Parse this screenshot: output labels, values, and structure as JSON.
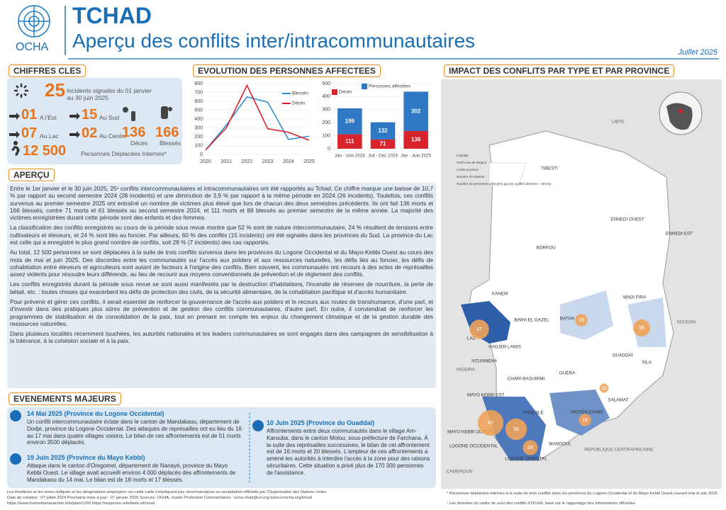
{
  "header": {
    "org": "OCHA",
    "country": "TCHAD",
    "title": "Aperçu des conflits inter/intracommunautaires",
    "date": "Juillet 2025"
  },
  "key_figures": {
    "title": "CHIFFRES CLES",
    "incidents": {
      "value": "25",
      "label": "Incidents signalés du 01 janvier au 30 juin 2025"
    },
    "regions": [
      {
        "value": "01",
        "label": "A l'Est"
      },
      {
        "value": "15",
        "label": "Au Sud"
      },
      {
        "value": "07",
        "label": "Au Lac"
      },
      {
        "value": "02",
        "label": "Au Centre"
      }
    ],
    "deaths": {
      "value": "136",
      "label": "Décès"
    },
    "injured": {
      "value": "166",
      "label": "Blessés"
    },
    "displaced": {
      "value": "12 500",
      "label": "Personnes Déplacées Internes*"
    }
  },
  "evolution_title": "EVOLUTION DES PERSONNES AFFECTEES",
  "chart_data": [
    {
      "type": "line",
      "categories": [
        "2020",
        "2021",
        "2022",
        "2023",
        "2024",
        "2025"
      ],
      "series": [
        {
          "name": "Blessés",
          "color": "#2f8fd0",
          "values": [
            50,
            330,
            650,
            590,
            170,
            205
          ]
        },
        {
          "name": "Décès",
          "color": "#d9232d",
          "values": [
            50,
            300,
            780,
            290,
            250,
            160
          ]
        }
      ],
      "ylim": [
        0,
        800
      ],
      "yticks": [
        0,
        100,
        200,
        300,
        400,
        500,
        600,
        700,
        800
      ],
      "grid": true
    },
    {
      "type": "bar",
      "categories": [
        "Jan - Juin 2024",
        "Juil - Déc 2024",
        "Jan - Juin 2025"
      ],
      "series": [
        {
          "name": "Décès",
          "color": "#d9232d",
          "values": [
            111,
            71,
            136
          ]
        },
        {
          "name": "Personnes affectées",
          "color": "#2f78c4",
          "values": [
            199,
            132,
            302
          ]
        }
      ],
      "ylim": [
        0,
        500
      ],
      "yticks": [
        0,
        100,
        200,
        300,
        400,
        500
      ],
      "grid": true
    }
  ],
  "overview": {
    "title": "APERÇU",
    "paragraphs": [
      "Entre le 1er janvier et le 30 juin 2025, 25¹ conflits intercommunautaires et intracommunautaires ont été rapportés au Tchad. Ce chiffre marque une baisse de 10,7 % par rapport au second semestre 2024 (28 incidents) et une diminution de 3,9 % par rapport à la même période en 2024 (26 incidents). Toutefois, ces conflits survenus au premier semestre 2025 ont entraîné un nombre de victimes plus élevé que lors de chacun des deux semestres précédents. Ils ont fait 136 morts et 166 blessés, contre 71 morts et 61 blessés au second semestre 2024, et 111 morts et 88 blessés au premier semestre de la même année. La majorité des victimes enregistrées durant cette période sont des enfants et des femmes.",
      "La classification des conflits enregistrés au cours de la période sous revue montre que 52 % sont de nature intercommunautaire, 24 % résultent de tensions entre cultivateurs et éleveurs, et 24 % sont liés au foncier. Par ailleurs, 60 % des conflits (15 incidents) ont été signalés dans les provinces du Sud. La province du Lac est celle qui a enregistré le plus grand nombre de conflits, soit 28 % (7 incidents) des cas rapportés.",
      "Au total, 12 500 personnes se sont déplacées à la suite de trois conflits survenus dans les provinces du Logone Occidental et du Mayo-Kebbi Ouest au cours des mois de mai et juin 2025. Des discordes entre les communautés sur l'accès aux polders et aux ressources naturelles, les défis liés au foncier, les défis de cohabitation entre éleveurs et agriculteurs sont autant de facteurs à l'origine des conflits. Bien souvent, les communautés ont recours à des actes de représailles assez violents pour résoudre leurs différends, au lieu de recourir aux moyens conventionnels de prévention et de règlement des conflits.",
      "Les conflits enregistrés durant la période sous revue se sont aussi manifestés par la destruction d'habitations, l'incendie de réserves de nourriture, la perte de bétail, etc. : toutes choses qui exacerbent les défis de protection des civils, de la sécurité alimentaire, de la cohabitation pacifique et d'accès humanitaire.",
      "Pour prévenir et gérer ces conflits, il serait essentiel de renforcer la gouvernance de l'accès aux polders et le recours aux routes de transhumance, d'une part, et d'investir dans des pratiques plus sûres de prévention et de gestion des conflits communautaires, d'autre part. En outre, il conviendrait de renforcer les programmes de stabilisation et de consolidation de la paix, tout en prenant en compte les enjeux du changement climatique et de la gestion durable des ressources naturelles.",
      "Dans plusieurs localités récemment touchées, les autorités nationales et les leaders communautaires se sont engagés dans des campagnes de sensibilisation à la tolérance, à la cohésion sociale et à la paix."
    ]
  },
  "events": {
    "title": "EVENEMENTS MAJEURS",
    "items": [
      {
        "title": "14 Mai 2025 (Province du Logone Occidental)",
        "text": "Un conflit intercommunautaire éclate dans le canton de Mandakaou, département de Dodjé, province du Logone Occidental. Des attaques de représailles ont eu lieu du 16 au 17 mai dans quatre villages voisins. Le bilan de ces affrontements est de 51 morts environ 3500 déplacés."
      },
      {
        "title": "19 Juin 2025 (Province du Mayo Kebbi)",
        "text": "Attaque dans le canton d'Oregomel, département de Nanayé, province du Mayo Kebbi Ouest. Le village avait accueilli environ 4 000 déplacés des affrontements de Mandakaou du 14 mai. Le bilan est de 18 morts et 17 blessés."
      },
      {
        "title": "10 Juin 2025 (Province du Ouaddaï)",
        "text": "Affrontements entre deux communautés dans le village Am-Karouba, dans le canton Molou, sous-préfecture de Farchana. À la suite des représailles successives, le bilan de cet affrontement est de 16 morts et 20 blessés. L'ampleur de ces affrontements a amené les autorités à interdire l'accès à la zone pour des raisons sécuritaires. Cette situation a privé plus de 170 300 personnes de l'assistance."
      }
    ]
  },
  "map": {
    "title": "IMPACT DES CONFLITS PAR TYPE ET PAR PROVINCE",
    "labels": [
      "LIBYE",
      "TIBESTI",
      "ENNEDI OUEST",
      "ENNEDI EST",
      "BORKOU",
      "KANEM",
      "WADI FIRA",
      "BARH EL GAZEL",
      "BATHA",
      "SOUDAN",
      "LAC",
      "HADJER LAMIS",
      "N'DJAMENA",
      "OUADDAÏ",
      "SILA",
      "NIGERIA",
      "CHARI BAGUIRMI",
      "GUÉRA",
      "SALAMAT",
      "MAYO KEBBI EST",
      "TANDJILÉ",
      "MOYEN CHARI",
      "MAYO KEBBI OUEST",
      "LOGONE OCCIDENTAL",
      "MANDOUL",
      "LOGONE ORIENTAL",
      "REPUBLIQUE CENTRAFRICAINE",
      "CAMEROUN"
    ],
    "affected": [
      47,
      19,
      36,
      10,
      82,
      58,
      28,
      19
    ],
    "legend": [
      "Capitale",
      "Chef-Lieu de Région",
      "Limite province",
      "Nombre d'incidents",
      "Nombre de personnes affectées par les conflits (blessés + décès)"
    ]
  },
  "footer": {
    "disclaimer": "Les frontières et les noms indiqués et les désignations employées sur cette carte n'impliquent pas reconnaissance ou acceptation officielle par l'Organisation des Nations Unies",
    "meta": "Date de création : 07 juillet 2024   Prochaine mise à jour : 07 janvier 2026   Sources: OCHA, cluster Protection   Commentaires : ocha-chad@un.org   www.unocha.org/tchad",
    "links": "https://www.humanitarianaction.info/plan/1260   https://response.reliefweb.int/chad",
    "note1": "* Personnes déplacées internes à la suite de trois conflits dans les provinces du Logone Occidental et du Mayo Kebbi Ouest courant mai et juin 2025",
    "note2": "¹ Les données du cadre de suivi des conflits d'OCHA, basé sur le rapportage des informations officielles"
  }
}
